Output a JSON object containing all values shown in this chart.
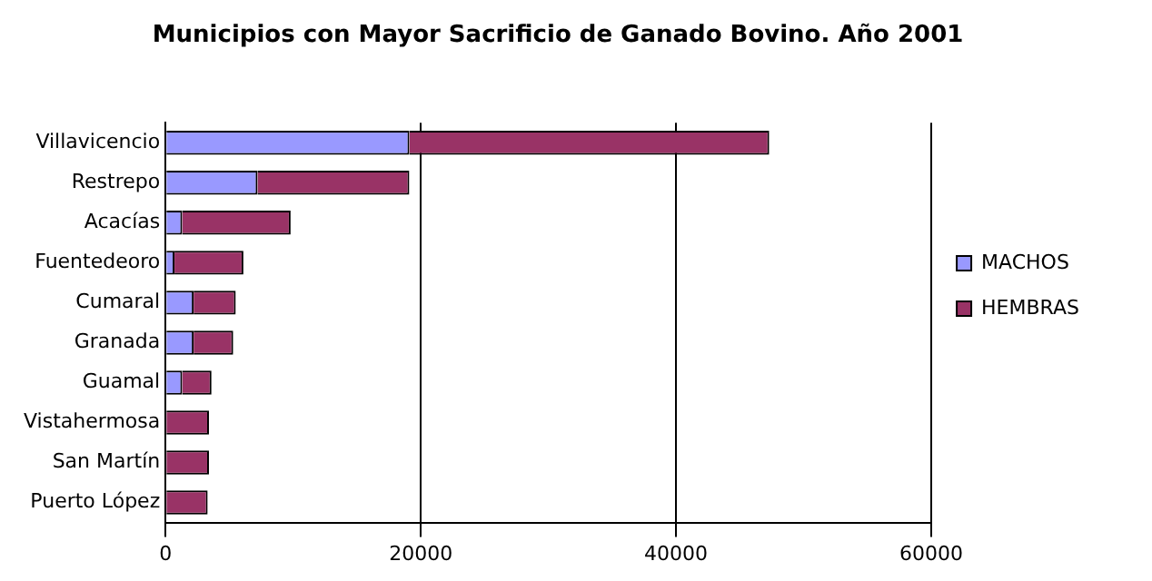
{
  "chart_data": {
    "type": "bar",
    "orientation": "horizontal",
    "stacked": true,
    "title": "Municipios con Mayor Sacrificio de Ganado Bovino. Año 2001",
    "categories": [
      "Villavicencio",
      "Restrepo",
      "Acacías",
      "Fuentedeoro",
      "Cumaral",
      "Granada",
      "Guamal",
      "Vistahermosa",
      "San Martín",
      "Puerto López"
    ],
    "series": [
      {
        "name": "MACHOS",
        "color": "#9999ff",
        "values": [
          19100,
          7200,
          1300,
          700,
          2200,
          2200,
          1300,
          0,
          0,
          0
        ]
      },
      {
        "name": "HEMBRAS",
        "color": "#993366",
        "values": [
          28200,
          11900,
          8500,
          5400,
          3300,
          3100,
          2300,
          3400,
          3400,
          3300
        ]
      }
    ],
    "xlim": [
      0,
      60000
    ],
    "xticks": [
      0,
      20000,
      40000,
      60000
    ],
    "grid": "x",
    "legend": "right"
  }
}
